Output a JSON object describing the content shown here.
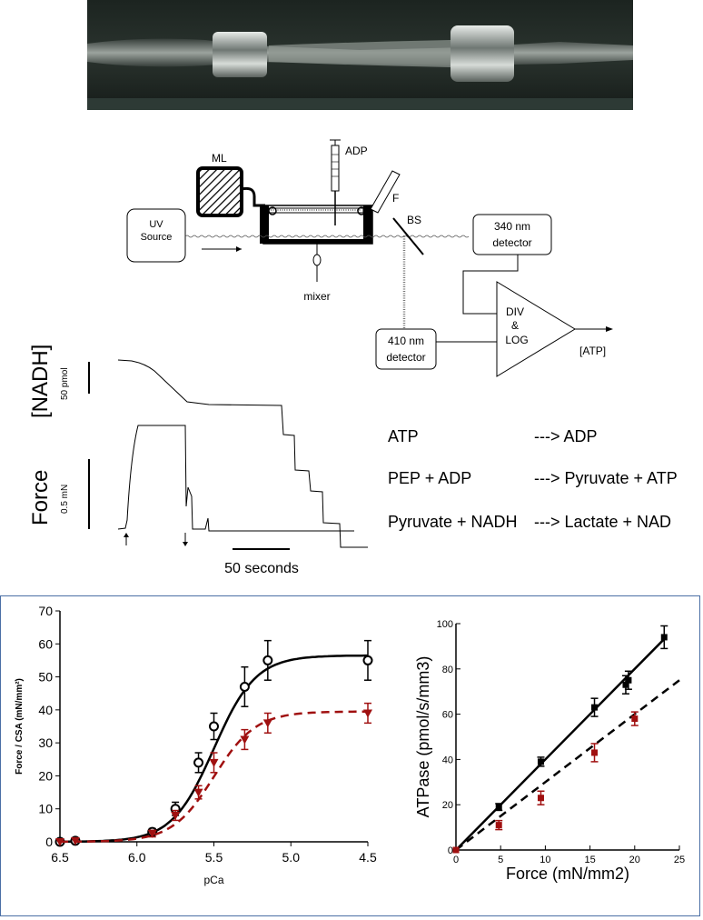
{
  "diagram": {
    "labels": {
      "ml": "ML",
      "adp": "ADP",
      "f": "F",
      "uv1": "UV",
      "uv2": "Source",
      "bs": "BS",
      "det340_1": "340 nm",
      "det340_2": "detector",
      "det410_1": "410 nm",
      "det410_2": "detector",
      "mixer": "mixer",
      "div1": "DIV",
      "div2": "&",
      "div3": "LOG",
      "atp_out": "[ATP]"
    }
  },
  "traces": {
    "nadh_label": "[NADH]",
    "nadh_scale": "50 pmol",
    "force_label": "Force",
    "force_scale": "0.5 mN",
    "time_scale": "50 seconds"
  },
  "reactions": [
    {
      "left": "ATP",
      "right": "---> ADP"
    },
    {
      "left": "PEP + ADP",
      "right": "---> Pyruvate + ATP"
    },
    {
      "left": "Pyruvate + NADH",
      "right": "---> Lactate + NAD"
    }
  ],
  "chart_data": [
    {
      "type": "line",
      "xlabel": "pCa",
      "ylabel": "Force / CSA (mN/mm²)",
      "xlim": [
        6.5,
        4.5
      ],
      "ylim": [
        0,
        70
      ],
      "x_ticks": [
        "6.5",
        "6.0",
        "5.5",
        "5.0",
        "4.5"
      ],
      "y_ticks": [
        "0",
        "10",
        "20",
        "30",
        "40",
        "50",
        "60",
        "70"
      ],
      "series": [
        {
          "marker": "circle",
          "color": "#000000",
          "line": "solid",
          "x": [
            6.5,
            6.4,
            5.9,
            5.75,
            5.6,
            5.5,
            5.3,
            5.15,
            4.5
          ],
          "y": [
            0,
            0.3,
            3,
            10,
            24,
            35,
            47,
            55,
            55
          ],
          "err": [
            0,
            0,
            1,
            2,
            3,
            4,
            6,
            6,
            6
          ]
        },
        {
          "marker": "triangle-down",
          "color": "#a01010",
          "line": "dashed",
          "x": [
            6.5,
            6.4,
            5.9,
            5.75,
            5.6,
            5.5,
            5.3,
            5.15,
            4.5
          ],
          "y": [
            0,
            0.3,
            2.5,
            8,
            15,
            24,
            31,
            36,
            39
          ],
          "err": [
            0,
            0,
            1,
            1.5,
            2,
            3,
            3,
            3,
            3
          ]
        }
      ]
    },
    {
      "type": "scatter",
      "xlabel": "Force (mN/mm2)",
      "ylabel": "ATPase (pmol/s/mm3)",
      "xlim": [
        0,
        25
      ],
      "ylim": [
        0,
        100
      ],
      "x_ticks": [
        "0",
        "5",
        "10",
        "15",
        "20",
        "25"
      ],
      "y_ticks": [
        "0",
        "20",
        "40",
        "60",
        "80",
        "100"
      ],
      "series": [
        {
          "marker": "square",
          "color": "#000000",
          "line": "solid",
          "fit": [
            [
              0,
              0
            ],
            [
              23.5,
              94
            ]
          ],
          "x": [
            0,
            4.8,
            9.5,
            15.5,
            19,
            19.3,
            23.3
          ],
          "y": [
            0,
            19,
            39,
            63,
            73,
            75,
            94
          ],
          "err": [
            0,
            1.5,
            2,
            4,
            4,
            4,
            5
          ]
        },
        {
          "marker": "square",
          "color": "#a01010",
          "line": "dashed",
          "fit": [
            [
              0,
              0
            ],
            [
              25,
              75
            ]
          ],
          "x": [
            0,
            4.8,
            9.5,
            15.5,
            20
          ],
          "y": [
            0,
            11,
            23,
            43,
            58
          ],
          "err": [
            0,
            2,
            3,
            4,
            3
          ]
        }
      ]
    }
  ]
}
